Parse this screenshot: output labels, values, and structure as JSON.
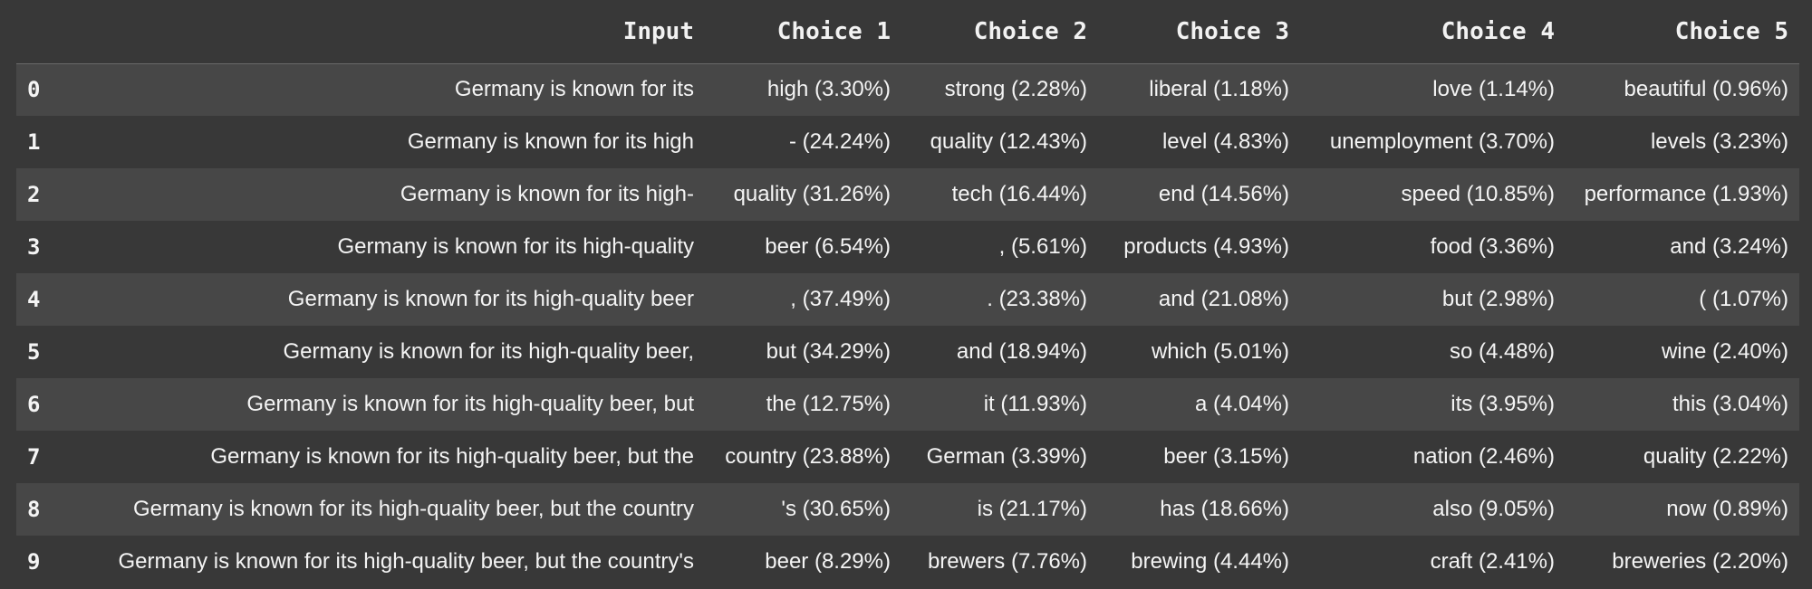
{
  "table": {
    "columns": [
      "",
      "Input",
      "Choice 1",
      "Choice 2",
      "Choice 3",
      "Choice 4",
      "Choice 5"
    ],
    "rows": [
      {
        "index": "0",
        "input": "Germany is known for its",
        "c1": "high (3.30%)",
        "c2": "strong (2.28%)",
        "c3": "liberal (1.18%)",
        "c4": "love (1.14%)",
        "c5": "beautiful (0.96%)"
      },
      {
        "index": "1",
        "input": "Germany is known for its high",
        "c1": "- (24.24%)",
        "c2": "quality (12.43%)",
        "c3": "level (4.83%)",
        "c4": "unemployment (3.70%)",
        "c5": "levels (3.23%)"
      },
      {
        "index": "2",
        "input": "Germany is known for its high-",
        "c1": "quality (31.26%)",
        "c2": "tech (16.44%)",
        "c3": "end (14.56%)",
        "c4": "speed (10.85%)",
        "c5": "performance (1.93%)"
      },
      {
        "index": "3",
        "input": "Germany is known for its high-quality",
        "c1": "beer (6.54%)",
        "c2": ", (5.61%)",
        "c3": "products (4.93%)",
        "c4": "food (3.36%)",
        "c5": "and (3.24%)"
      },
      {
        "index": "4",
        "input": "Germany is known for its high-quality beer",
        "c1": ", (37.49%)",
        "c2": ". (23.38%)",
        "c3": "and (21.08%)",
        "c4": "but (2.98%)",
        "c5": "( (1.07%)"
      },
      {
        "index": "5",
        "input": "Germany is known for its high-quality beer,",
        "c1": "but (34.29%)",
        "c2": "and (18.94%)",
        "c3": "which (5.01%)",
        "c4": "so (4.48%)",
        "c5": "wine (2.40%)"
      },
      {
        "index": "6",
        "input": "Germany is known for its high-quality beer, but",
        "c1": "the (12.75%)",
        "c2": "it (11.93%)",
        "c3": "a (4.04%)",
        "c4": "its (3.95%)",
        "c5": "this (3.04%)"
      },
      {
        "index": "7",
        "input": "Germany is known for its high-quality beer, but the",
        "c1": "country (23.88%)",
        "c2": "German (3.39%)",
        "c3": "beer (3.15%)",
        "c4": "nation (2.46%)",
        "c5": "quality (2.22%)"
      },
      {
        "index": "8",
        "input": "Germany is known for its high-quality beer, but the country",
        "c1": "'s (30.65%)",
        "c2": "is (21.17%)",
        "c3": "has (18.66%)",
        "c4": "also (9.05%)",
        "c5": "now (0.89%)"
      },
      {
        "index": "9",
        "input": "Germany is known for its high-quality beer, but the country's",
        "c1": "beer (8.29%)",
        "c2": "brewers (7.76%)",
        "c3": "brewing (4.44%)",
        "c4": "craft (2.41%)",
        "c5": "breweries (2.20%)"
      }
    ]
  },
  "colors": {
    "background": "#383838",
    "row_stripe": "#474747",
    "text": "#f4f4f4",
    "header_rule": "#6a6a6a"
  }
}
